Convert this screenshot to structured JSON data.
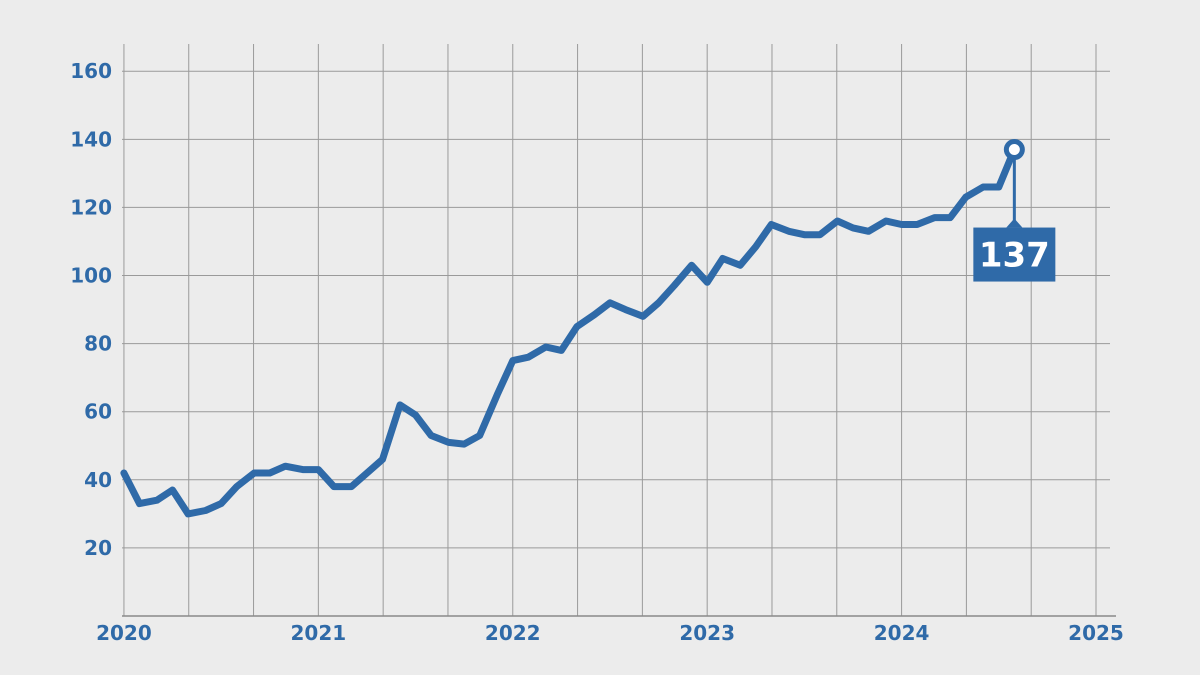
{
  "chart_data": {
    "type": "line",
    "title": "",
    "xlabel": "",
    "ylabel": "",
    "x_ticks": [
      "2020",
      "2021",
      "2022",
      "2023",
      "2024",
      "2025"
    ],
    "y_ticks": [
      "20",
      "40",
      "60",
      "80",
      "100",
      "120",
      "140",
      "160"
    ],
    "xlim": [
      2019.99,
      2025.0
    ],
    "ylim": [
      0,
      168
    ],
    "grid": true,
    "series": [
      {
        "color": "#2f6aa8",
        "x": [
          2020.0,
          2020.08,
          2020.17,
          2020.25,
          2020.33,
          2020.42,
          2020.5,
          2020.58,
          2020.67,
          2020.75,
          2020.83,
          2020.92,
          2021.0,
          2021.08,
          2021.17,
          2021.25,
          2021.33,
          2021.42,
          2021.5,
          2021.58,
          2021.67,
          2021.75,
          2021.83,
          2021.92,
          2022.0,
          2022.08,
          2022.17,
          2022.25,
          2022.33,
          2022.42,
          2022.5,
          2022.58,
          2022.67,
          2022.75,
          2022.83,
          2022.92,
          2023.0,
          2023.08,
          2023.17,
          2023.25,
          2023.33,
          2023.42,
          2023.5,
          2023.58,
          2023.67,
          2023.75,
          2023.83,
          2023.92,
          2024.0,
          2024.08,
          2024.17,
          2024.25,
          2024.33,
          2024.42,
          2024.5,
          2024.58
        ],
        "y": [
          42,
          33,
          34,
          37,
          30,
          31,
          33,
          38,
          42,
          42,
          44,
          43,
          43,
          38,
          38,
          42,
          46,
          62,
          59,
          53,
          51,
          50.5,
          53,
          65,
          75,
          76,
          79,
          78,
          85,
          88.5,
          92,
          90,
          88,
          92,
          97,
          103,
          98,
          105,
          103,
          108.5,
          115,
          113,
          112,
          112,
          116,
          114,
          113,
          116,
          115,
          115,
          117,
          117,
          123,
          126,
          126,
          137
        ]
      }
    ],
    "annotations": [
      {
        "x": 2024.58,
        "y": 137,
        "text": "137"
      }
    ]
  }
}
